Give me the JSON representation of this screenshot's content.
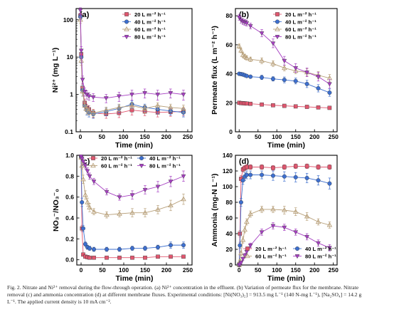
{
  "figure": {
    "caption_lines": [
      "Fig. 2.  Nitrate and Ni²⁺ removal during the flow-through operation. (a) Ni²⁺ concentration in the effluent. (b) Variation of permeate flux for the membrane. Nitrate",
      "removal (c) and ammonia concentration (d) at different membrane fluxes. Experimental conditions: [Ni(NO₃)₂] = 913.5 mg L⁻¹ (140 N-mg L⁻¹), [Na₂SO₄] = 14.2 g",
      "L⁻¹. The applied current density is 10 mA cm⁻²."
    ]
  },
  "series_styles": [
    {
      "name": "20 L m⁻² h⁻¹",
      "color": "#e0566e",
      "marker": "square"
    },
    {
      "name": "40 L m⁻² h⁻¹",
      "color": "#3d6fcf",
      "marker": "circle"
    },
    {
      "name": "60 L m⁻² h⁻¹",
      "color": "#b8a07a",
      "marker": "triangle-up"
    },
    {
      "name": "80 L m⁻² h⁻¹",
      "color": "#a63ec2",
      "marker": "triangle-down"
    }
  ],
  "chart_data": [
    {
      "panel": "(a)",
      "type": "line",
      "xlabel": "Time (min)",
      "ylabel": "Ni²⁺ (mg L⁻¹)",
      "xlim": [
        -10,
        260
      ],
      "ylim": [
        0.1,
        200
      ],
      "yscale": "log",
      "xticks": [
        0,
        50,
        100,
        150,
        200,
        250
      ],
      "yticks": [
        0.1,
        1,
        10,
        100
      ],
      "yticklabels": [
        "0.1",
        "1",
        "10",
        "100"
      ],
      "legend": "top-right",
      "series": [
        {
          "name": "20 L m⁻² h⁻¹",
          "x": [
            0,
            2,
            5,
            10,
            15,
            20,
            30,
            60,
            90,
            120,
            150,
            180,
            210,
            240
          ],
          "y": [
            130,
            12,
            1.5,
            0.6,
            0.45,
            0.4,
            0.32,
            0.3,
            0.32,
            0.38,
            0.35,
            0.33,
            0.34,
            0.35
          ],
          "err": [
            20,
            3,
            0.4,
            0.15,
            0.1,
            0.1,
            0.08,
            0.07,
            0.08,
            0.1,
            0.08,
            0.08,
            0.08,
            0.08
          ]
        },
        {
          "name": "40 L m⁻² h⁻¹",
          "x": [
            0,
            2,
            5,
            10,
            15,
            20,
            30,
            60,
            90,
            120,
            150,
            180,
            210,
            240
          ],
          "y": [
            120,
            10,
            1.3,
            0.5,
            0.38,
            0.33,
            0.3,
            0.35,
            0.42,
            0.55,
            0.45,
            0.4,
            0.36,
            0.33
          ],
          "err": [
            20,
            3,
            0.4,
            0.12,
            0.1,
            0.08,
            0.07,
            0.08,
            0.1,
            0.12,
            0.1,
            0.09,
            0.08,
            0.08
          ]
        },
        {
          "name": "60 L m⁻² h⁻¹",
          "x": [
            0,
            2,
            5,
            10,
            15,
            20,
            30,
            60,
            90,
            120,
            150,
            180,
            210,
            240
          ],
          "y": [
            100,
            8,
            1.2,
            0.5,
            0.4,
            0.36,
            0.32,
            0.38,
            0.45,
            0.5,
            0.42,
            0.5,
            0.45,
            0.42
          ],
          "err": [
            20,
            2,
            0.3,
            0.12,
            0.1,
            0.08,
            0.07,
            0.08,
            0.1,
            0.1,
            0.1,
            0.1,
            0.1,
            0.1
          ]
        },
        {
          "name": "80 L m⁻² h⁻¹",
          "x": [
            0,
            2,
            5,
            10,
            15,
            20,
            30,
            60,
            90,
            120,
            150,
            180,
            210,
            240
          ],
          "y": [
            180,
            15,
            2.5,
            1.2,
            1.0,
            0.9,
            0.85,
            0.8,
            0.9,
            1.0,
            1.1,
            1.0,
            1.1,
            1.0
          ],
          "err": [
            30,
            4,
            0.6,
            0.3,
            0.25,
            0.2,
            0.2,
            0.2,
            0.25,
            0.3,
            0.3,
            0.3,
            0.3,
            0.3
          ]
        }
      ]
    },
    {
      "panel": "(b)",
      "type": "line",
      "xlabel": "Time (min)",
      "ylabel": "Permeate flux (L m⁻² h⁻¹)",
      "xlim": [
        -10,
        260
      ],
      "ylim": [
        0,
        85
      ],
      "yscale": "linear",
      "xticks": [
        0,
        50,
        100,
        150,
        200,
        250
      ],
      "yticks": [
        0,
        20,
        40,
        60,
        80
      ],
      "yticklabels": [
        "0",
        "20",
        "40",
        "60",
        "80"
      ],
      "legend": "top-right",
      "series": [
        {
          "name": "20 L m⁻² h⁻¹",
          "x": [
            0,
            5,
            10,
            15,
            20,
            30,
            60,
            90,
            120,
            150,
            180,
            210,
            240
          ],
          "y": [
            20,
            19.8,
            19.7,
            19.6,
            19.5,
            19.3,
            18.8,
            18.3,
            17.9,
            17.5,
            17.2,
            16.8,
            16.5
          ],
          "err": [
            0.5,
            0.5,
            0.5,
            0.5,
            0.5,
            0.5,
            0.6,
            0.6,
            0.6,
            0.6,
            0.6,
            0.6,
            0.6
          ]
        },
        {
          "name": "40 L m⁻² h⁻¹",
          "x": [
            0,
            5,
            10,
            15,
            20,
            30,
            60,
            90,
            120,
            150,
            180,
            210,
            240
          ],
          "y": [
            40,
            39.8,
            39.5,
            39,
            38.5,
            38,
            37.5,
            36.5,
            35.8,
            35,
            33,
            30,
            27
          ],
          "err": [
            1,
            1,
            1,
            1,
            1,
            1,
            1.5,
            1.5,
            2,
            2,
            2.5,
            2.5,
            2.5
          ]
        },
        {
          "name": "60 L m⁻² h⁻¹",
          "x": [
            0,
            5,
            10,
            15,
            20,
            30,
            60,
            90,
            120,
            150,
            180,
            210,
            240
          ],
          "y": [
            59,
            56,
            53,
            52,
            51,
            50,
            49,
            47,
            44,
            42,
            41,
            39,
            37
          ],
          "err": [
            1.5,
            1.5,
            1.5,
            1.5,
            1.5,
            1.5,
            2,
            2,
            2,
            2,
            2.5,
            2.5,
            2.5
          ]
        },
        {
          "name": "80 L m⁻² h⁻¹",
          "x": [
            0,
            5,
            10,
            15,
            20,
            30,
            60,
            90,
            120,
            150,
            180,
            210,
            240
          ],
          "y": [
            79,
            77,
            76,
            75.5,
            75,
            73,
            68,
            61,
            49,
            44,
            41,
            38,
            33
          ],
          "err": [
            2,
            2,
            2,
            2,
            2,
            2,
            2.5,
            3,
            3,
            3,
            3,
            3,
            3
          ]
        }
      ]
    },
    {
      "panel": "(c)",
      "type": "line",
      "xlabel": "Time (min)",
      "ylabel": "NO₃⁻/NO₃⁻₀",
      "xlim": [
        -10,
        260
      ],
      "ylim": [
        -0.05,
        1.0
      ],
      "yscale": "linear",
      "xticks": [
        0,
        50,
        100,
        150,
        200,
        250
      ],
      "yticks": [
        0.0,
        0.2,
        0.4,
        0.6,
        0.8,
        1.0
      ],
      "yticklabels": [
        "0.0",
        "0.2",
        "0.4",
        "0.6",
        "0.8",
        "1.0"
      ],
      "legend": "top",
      "series": [
        {
          "name": "20 L m⁻² h⁻¹",
          "x": [
            0,
            2,
            5,
            10,
            15,
            20,
            30,
            60,
            90,
            120,
            150,
            180,
            210,
            240
          ],
          "y": [
            0.98,
            0.3,
            0.05,
            0.03,
            0.025,
            0.02,
            0.02,
            0.02,
            0.02,
            0.02,
            0.02,
            0.03,
            0.03,
            0.03
          ],
          "err": [
            0.01,
            0.03,
            0.01,
            0.01,
            0.01,
            0.01,
            0.01,
            0.01,
            0.01,
            0.01,
            0.01,
            0.01,
            0.01,
            0.01
          ]
        },
        {
          "name": "40 L m⁻² h⁻¹",
          "x": [
            0,
            2,
            5,
            10,
            15,
            20,
            30,
            60,
            90,
            120,
            150,
            180,
            210,
            240
          ],
          "y": [
            0.98,
            0.55,
            0.3,
            0.15,
            0.12,
            0.11,
            0.1,
            0.1,
            0.1,
            0.11,
            0.11,
            0.12,
            0.14,
            0.14
          ],
          "err": [
            0.01,
            0.04,
            0.03,
            0.02,
            0.02,
            0.02,
            0.02,
            0.02,
            0.02,
            0.02,
            0.02,
            0.02,
            0.03,
            0.03
          ]
        },
        {
          "name": "60 L m⁻² h⁻¹",
          "x": [
            0,
            2,
            5,
            10,
            15,
            20,
            30,
            60,
            90,
            120,
            150,
            180,
            210,
            240
          ],
          "y": [
            0.98,
            0.9,
            0.77,
            0.62,
            0.55,
            0.5,
            0.46,
            0.43,
            0.44,
            0.45,
            0.45,
            0.48,
            0.52,
            0.58
          ],
          "err": [
            0.01,
            0.03,
            0.04,
            0.04,
            0.04,
            0.04,
            0.03,
            0.03,
            0.03,
            0.04,
            0.04,
            0.04,
            0.05,
            0.05
          ]
        },
        {
          "name": "80 L m⁻² h⁻¹",
          "x": [
            0,
            2,
            5,
            10,
            15,
            20,
            30,
            60,
            90,
            120,
            150,
            180,
            210,
            240
          ],
          "y": [
            0.99,
            0.97,
            0.94,
            0.9,
            0.85,
            0.8,
            0.75,
            0.65,
            0.6,
            0.62,
            0.67,
            0.7,
            0.75,
            0.8
          ],
          "err": [
            0.01,
            0.02,
            0.03,
            0.03,
            0.03,
            0.03,
            0.03,
            0.03,
            0.03,
            0.04,
            0.04,
            0.05,
            0.05,
            0.05
          ]
        }
      ]
    },
    {
      "panel": "(d)",
      "type": "line",
      "xlabel": "Time (min)",
      "ylabel": "Ammonia (mg-N L⁻¹)",
      "xlim": [
        -10,
        260
      ],
      "ylim": [
        0,
        140
      ],
      "yscale": "linear",
      "xticks": [
        0,
        50,
        100,
        150,
        200,
        250
      ],
      "yticks": [
        0,
        20,
        40,
        60,
        80,
        100,
        120,
        140
      ],
      "yticklabels": [
        "0",
        "20",
        "40",
        "60",
        "80",
        "100",
        "120",
        "140"
      ],
      "legend": "bottom",
      "series": [
        {
          "name": "20 L m⁻² h⁻¹",
          "x": [
            0,
            2,
            5,
            10,
            15,
            20,
            30,
            60,
            90,
            120,
            150,
            180,
            210,
            240
          ],
          "y": [
            0,
            40,
            110,
            122,
            124,
            125,
            125,
            125,
            124,
            125,
            126,
            126,
            125,
            125
          ],
          "err": [
            0,
            4,
            4,
            3,
            3,
            3,
            3,
            3,
            3,
            3,
            3,
            3,
            3,
            3
          ]
        },
        {
          "name": "40 L m⁻² h⁻¹",
          "x": [
            0,
            2,
            5,
            10,
            15,
            20,
            30,
            60,
            90,
            120,
            150,
            180,
            210,
            240
          ],
          "y": [
            0,
            25,
            80,
            108,
            113,
            115,
            115,
            115,
            114,
            113,
            112,
            111,
            108,
            104
          ],
          "err": [
            0,
            4,
            5,
            5,
            5,
            5,
            5,
            5,
            6,
            6,
            6,
            6,
            6,
            7
          ]
        },
        {
          "name": "60 L m⁻² h⁻¹",
          "x": [
            0,
            2,
            5,
            10,
            15,
            20,
            30,
            60,
            90,
            120,
            150,
            180,
            210,
            240
          ],
          "y": [
            0,
            5,
            15,
            32,
            45,
            55,
            65,
            71,
            71,
            70,
            68,
            62,
            55,
            51
          ],
          "err": [
            0,
            2,
            3,
            4,
            4,
            4,
            4,
            4,
            4,
            5,
            5,
            5,
            4,
            4
          ]
        },
        {
          "name": "80 L m⁻² h⁻¹",
          "x": [
            0,
            2,
            5,
            10,
            15,
            20,
            30,
            60,
            90,
            120,
            150,
            180,
            210,
            240
          ],
          "y": [
            0,
            1,
            3,
            8,
            12,
            17,
            25,
            42,
            50,
            48,
            42,
            36,
            28,
            22
          ],
          "err": [
            0,
            1,
            2,
            2,
            3,
            3,
            3,
            4,
            4,
            4,
            4,
            4,
            4,
            4
          ]
        }
      ]
    }
  ]
}
